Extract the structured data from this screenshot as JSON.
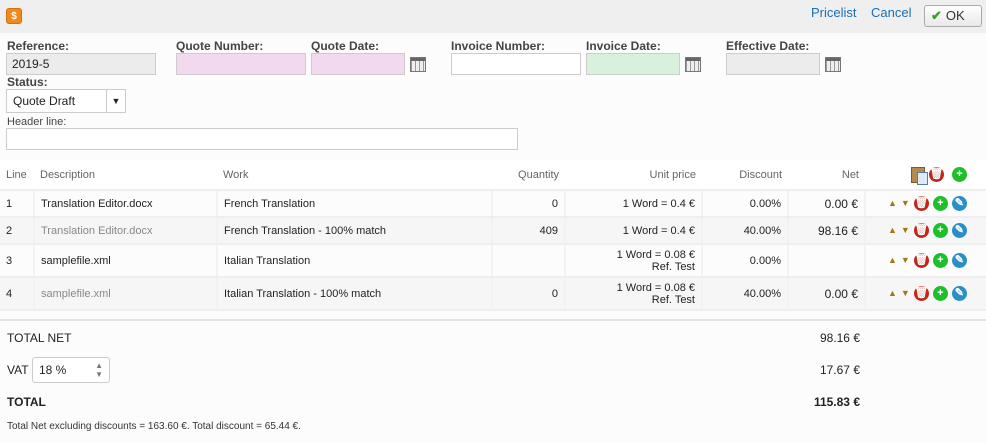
{
  "toolbar": {
    "app_icon": "invoice-dollar-icon",
    "pricelist": "Pricelist",
    "cancel": "Cancel",
    "ok": "OK"
  },
  "form": {
    "reference": {
      "label": "Reference:",
      "value": "2019-5"
    },
    "quote_number": {
      "label": "Quote Number:",
      "value": ""
    },
    "quote_date": {
      "label": "Quote Date:",
      "value": ""
    },
    "invoice_number": {
      "label": "Invoice Number:",
      "value": ""
    },
    "invoice_date": {
      "label": "Invoice Date:",
      "value": ""
    },
    "effective_date": {
      "label": "Effective Date:",
      "value": ""
    },
    "status": {
      "label": "Status:",
      "value": "Quote Draft"
    },
    "header_line": {
      "label": "Header line:",
      "value": ""
    }
  },
  "colors": {
    "quote_fields": "#f2d9f0",
    "invoice_date": "#d9f0dc",
    "readonly": "#ececec",
    "link": "#1a6fb5"
  },
  "table": {
    "headers": [
      "Line",
      "Description",
      "Work",
      "Quantity",
      "Unit price",
      "Discount",
      "Net"
    ],
    "rows": [
      {
        "line": "1",
        "description": "Translation Editor.docx",
        "work": "French Translation",
        "quantity": "0",
        "unit_price": "1 Word = 0.4 €",
        "unit_ref": "",
        "discount": "0.00%",
        "net": "0.00 €"
      },
      {
        "line": "2",
        "description": "Translation Editor.docx",
        "work": "French Translation - 100% match",
        "quantity": "409",
        "unit_price": "1 Word = 0.4 €",
        "unit_ref": "",
        "discount": "40.00%",
        "net": "98.16 €"
      },
      {
        "line": "3",
        "description": "samplefile.xml",
        "work": "Italian Translation",
        "quantity": "",
        "unit_price": "1 Word = 0.08 €",
        "unit_ref": "Ref. Test",
        "discount": "0.00%",
        "net": ""
      },
      {
        "line": "4",
        "description": "samplefile.xml",
        "work": "Italian Translation - 100% match",
        "quantity": "0",
        "unit_price": "1 Word = 0.08 €",
        "unit_ref": "Ref. Test",
        "discount": "40.00%",
        "net": "0.00 €"
      }
    ]
  },
  "totals": {
    "total_net_label": "TOTAL NET",
    "total_net": "98.16 €",
    "vat_label": "VAT",
    "vat_rate": "18 %",
    "vat": "17.67 €",
    "total_label": "TOTAL",
    "total": "115.83 €",
    "note": "Total Net excluding discounts = 163.60 €. Total discount = 65.44 €."
  }
}
